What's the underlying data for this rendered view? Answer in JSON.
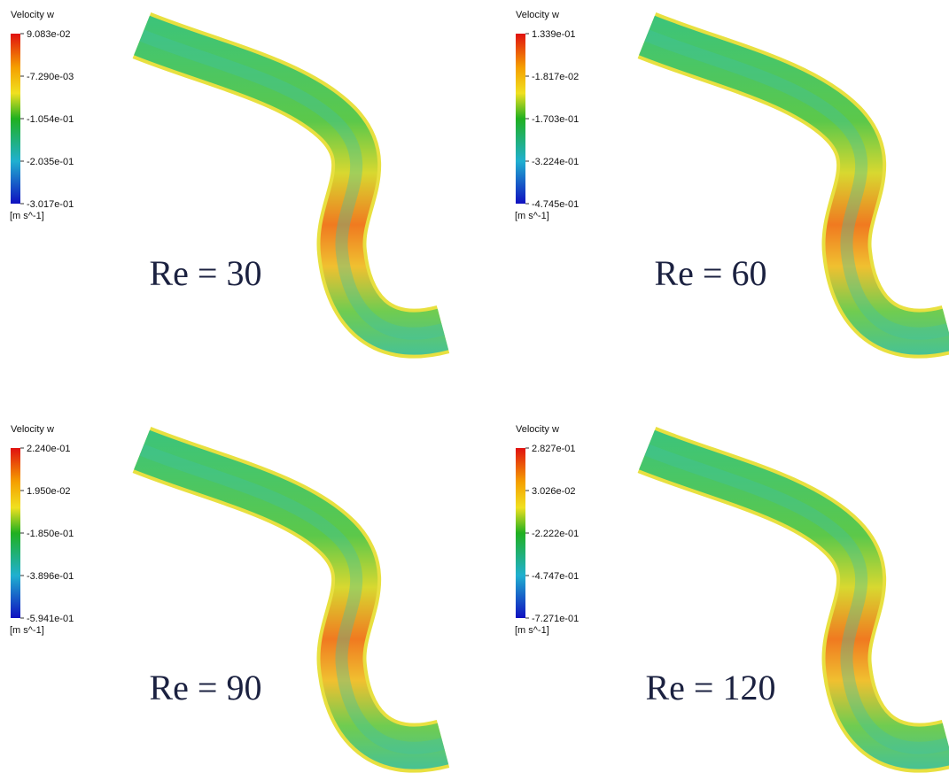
{
  "panels": [
    {
      "legend_title": "Velocity w",
      "ticks": [
        "9.083e-02",
        "-7.290e-03",
        "-1.054e-01",
        "-2.035e-01",
        "-3.017e-01"
      ],
      "unit": "[m s^-1]",
      "label": "Re = 30"
    },
    {
      "legend_title": "Velocity w",
      "ticks": [
        "1.339e-01",
        "-1.817e-02",
        "-1.703e-01",
        "-3.224e-01",
        "-4.745e-01"
      ],
      "unit": "[m s^-1]",
      "label": "Re = 60"
    },
    {
      "legend_title": "Velocity w",
      "ticks": [
        "2.240e-01",
        "1.950e-02",
        "-1.850e-01",
        "-3.896e-01",
        "-5.941e-01"
      ],
      "unit": "[m s^-1]",
      "label": "Re = 90"
    },
    {
      "legend_title": "Velocity w",
      "ticks": [
        "2.827e-01",
        "3.026e-02",
        "-2.222e-01",
        "-4.747e-01",
        "-7.271e-01"
      ],
      "unit": "[m s^-1]",
      "label": "Re = 120"
    }
  ]
}
